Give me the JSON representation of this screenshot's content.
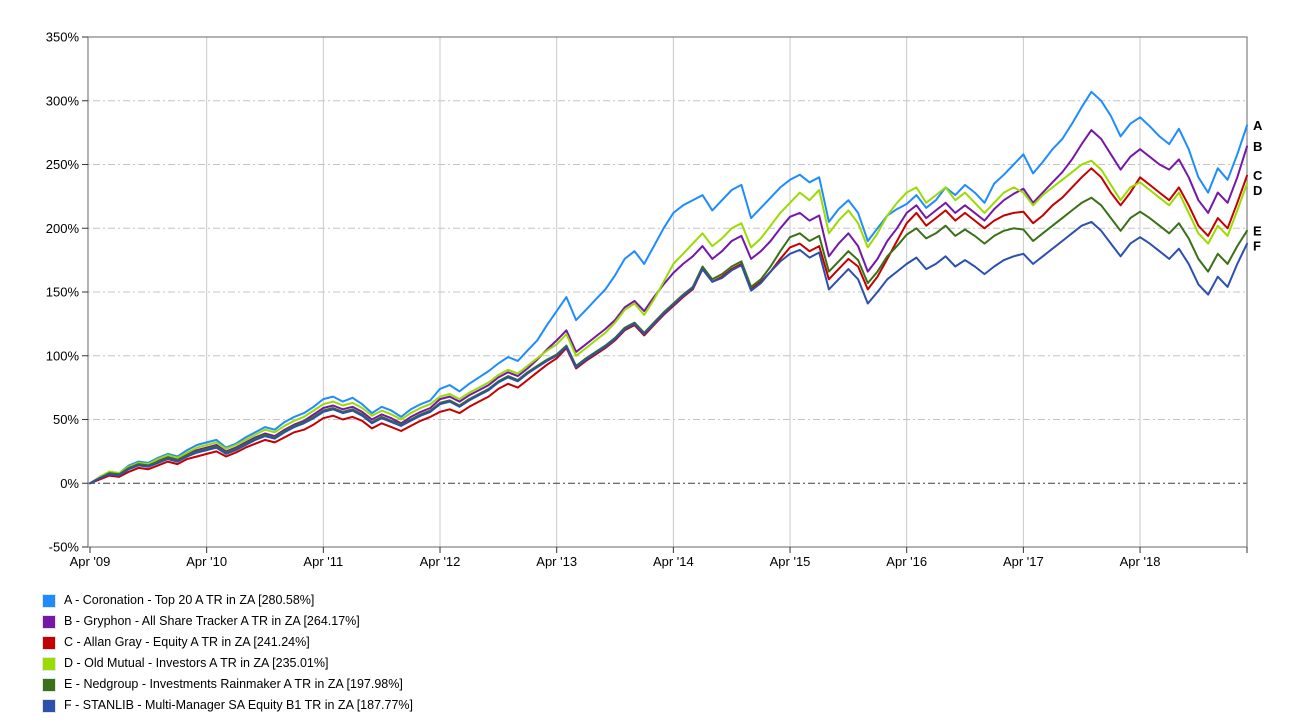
{
  "chart_data": {
    "type": "line",
    "title": "",
    "x_axis": {
      "tick_labels": [
        "Apr '09",
        "Apr '10",
        "Apr '11",
        "Apr '12",
        "Apr '13",
        "Apr '14",
        "Apr '15",
        "Apr '16",
        "Apr '17",
        "Apr '18"
      ],
      "tick_months": [
        0,
        12,
        24,
        36,
        48,
        60,
        72,
        84,
        96,
        108
      ],
      "unit": "months since Apr 2009"
    },
    "y_axis": {
      "tick_labels": [
        "350%",
        "300%",
        "250%",
        "200%",
        "150%",
        "100%",
        "50%",
        "0%",
        "-50%"
      ],
      "tick_values": [
        350,
        300,
        250,
        200,
        150,
        100,
        50,
        0,
        -50
      ],
      "min": -50,
      "max": 350,
      "unit": "%"
    },
    "grid": {
      "vertical_color": "#c9c9c9",
      "horizontal_color": "#c4c4c4",
      "zero_line_color": "#3c3c3c",
      "border_color": "#808080",
      "tick_color": "#333333",
      "label_color": "#000000"
    },
    "series": [
      {
        "id": "A",
        "name": "Coronation - Top 20 A TR in ZA",
        "final_value": 280.58,
        "color": "#1E8CFF",
        "legend_label": "A - Coronation - Top 20 A TR in ZA [280.58%]",
        "values": [
          0,
          5,
          9,
          8,
          14,
          17,
          16,
          20,
          23,
          21,
          26,
          30,
          32,
          34,
          28,
          31,
          36,
          40,
          44,
          42,
          48,
          52,
          55,
          60,
          66,
          68,
          64,
          67,
          62,
          55,
          60,
          57,
          52,
          58,
          62,
          65,
          74,
          77,
          72,
          78,
          83,
          88,
          94,
          99,
          96,
          104,
          112,
          124,
          135,
          146,
          128,
          136,
          144,
          152,
          163,
          176,
          182,
          172,
          186,
          200,
          212,
          218,
          222,
          226,
          214,
          222,
          230,
          234,
          208,
          216,
          224,
          232,
          238,
          242,
          236,
          240,
          205,
          215,
          222,
          212,
          190,
          200,
          210,
          215,
          219,
          226,
          216,
          222,
          232,
          226,
          234,
          228,
          220,
          235,
          242,
          250,
          258,
          243,
          252,
          262,
          270,
          282,
          295,
          307,
          300,
          288,
          272,
          282,
          287,
          280,
          272,
          266,
          278,
          262,
          240,
          228,
          247,
          238,
          258,
          280.58
        ]
      },
      {
        "id": "B",
        "name": "Gryphon - All Share Tracker A TR in ZA",
        "final_value": 264.17,
        "color": "#7517A8",
        "legend_label": "B - Gryphon - All Share Tracker A TR in ZA [264.17%]",
        "values": [
          0,
          4,
          8,
          7,
          12,
          15,
          14,
          18,
          21,
          19,
          23,
          26,
          28,
          30,
          25,
          28,
          32,
          36,
          39,
          37,
          42,
          46,
          49,
          54,
          59,
          61,
          58,
          60,
          56,
          50,
          54,
          51,
          47,
          52,
          56,
          59,
          66,
          68,
          64,
          69,
          73,
          77,
          83,
          87,
          84,
          90,
          97,
          105,
          112,
          120,
          103,
          109,
          115,
          121,
          128,
          138,
          143,
          135,
          146,
          156,
          165,
          172,
          178,
          186,
          176,
          182,
          190,
          194,
          176,
          182,
          190,
          200,
          209,
          212,
          206,
          210,
          178,
          188,
          196,
          186,
          166,
          176,
          190,
          200,
          212,
          218,
          208,
          214,
          220,
          212,
          218,
          212,
          206,
          215,
          222,
          227,
          231,
          220,
          228,
          236,
          244,
          254,
          266,
          277,
          270,
          258,
          246,
          256,
          262,
          256,
          250,
          246,
          254,
          240,
          222,
          212,
          228,
          220,
          240,
          264.17
        ]
      },
      {
        "id": "C",
        "name": "Allan Gray - Equity A TR in ZA",
        "final_value": 241.24,
        "color": "#C40000",
        "legend_label": "C - Allan Gray - Equity A TR in ZA [241.24%]",
        "values": [
          0,
          3,
          6,
          5,
          9,
          12,
          11,
          14,
          17,
          15,
          19,
          21,
          23,
          25,
          21,
          24,
          28,
          31,
          34,
          32,
          36,
          40,
          42,
          46,
          51,
          53,
          50,
          52,
          49,
          43,
          47,
          44,
          41,
          45,
          49,
          52,
          56,
          58,
          55,
          60,
          64,
          68,
          74,
          78,
          75,
          81,
          87,
          93,
          98,
          106,
          90,
          96,
          101,
          106,
          112,
          120,
          124,
          116,
          124,
          132,
          139,
          146,
          152,
          168,
          158,
          162,
          168,
          172,
          152,
          158,
          166,
          176,
          185,
          188,
          182,
          186,
          160,
          168,
          176,
          170,
          152,
          162,
          176,
          190,
          204,
          212,
          202,
          208,
          214,
          206,
          212,
          206,
          200,
          206,
          210,
          212,
          213,
          204,
          210,
          218,
          224,
          232,
          240,
          247,
          240,
          228,
          218,
          228,
          240,
          234,
          228,
          222,
          232,
          218,
          202,
          194,
          208,
          200,
          220,
          241.24
        ]
      },
      {
        "id": "D",
        "name": "Old Mutual - Investors A TR in ZA",
        "final_value": 235.01,
        "color": "#9BDC00",
        "legend_label": "D - Old Mutual - Investors A TR in ZA [235.01%]",
        "values": [
          0,
          5,
          9,
          8,
          13,
          16,
          15,
          19,
          22,
          20,
          24,
          28,
          30,
          32,
          27,
          30,
          34,
          38,
          42,
          40,
          45,
          49,
          52,
          57,
          62,
          64,
          61,
          63,
          59,
          53,
          57,
          54,
          50,
          55,
          59,
          62,
          68,
          70,
          66,
          71,
          75,
          79,
          85,
          89,
          86,
          92,
          98,
          104,
          109,
          117,
          100,
          106,
          112,
          118,
          126,
          136,
          141,
          132,
          144,
          158,
          172,
          180,
          188,
          196,
          186,
          192,
          200,
          204,
          185,
          192,
          202,
          212,
          220,
          228,
          222,
          230,
          196,
          206,
          214,
          204,
          185,
          196,
          210,
          220,
          228,
          232,
          220,
          226,
          232,
          222,
          228,
          220,
          212,
          220,
          228,
          232,
          228,
          218,
          226,
          232,
          238,
          244,
          250,
          253,
          246,
          234,
          222,
          232,
          236,
          230,
          224,
          218,
          228,
          212,
          196,
          188,
          202,
          194,
          214,
          235.01
        ]
      },
      {
        "id": "E",
        "name": "Nedgroup - Investments Rainmaker A TR in ZA",
        "final_value": 197.98,
        "color": "#3A7017",
        "legend_label": "E - Nedgroup - Investments Rainmaker A TR in ZA [197.98%]",
        "values": [
          0,
          4,
          8,
          7,
          12,
          15,
          14,
          17,
          20,
          18,
          22,
          25,
          27,
          29,
          24,
          27,
          31,
          35,
          38,
          36,
          41,
          45,
          48,
          52,
          57,
          59,
          56,
          58,
          54,
          48,
          52,
          49,
          46,
          50,
          54,
          57,
          63,
          65,
          61,
          66,
          70,
          74,
          80,
          84,
          81,
          87,
          92,
          97,
          101,
          108,
          92,
          98,
          103,
          108,
          114,
          122,
          126,
          118,
          126,
          134,
          141,
          148,
          154,
          170,
          160,
          164,
          170,
          174,
          154,
          160,
          170,
          182,
          193,
          196,
          190,
          194,
          166,
          174,
          182,
          175,
          157,
          166,
          178,
          186,
          195,
          200,
          192,
          196,
          202,
          194,
          199,
          194,
          188,
          194,
          198,
          200,
          199,
          190,
          196,
          202,
          208,
          214,
          220,
          224,
          218,
          208,
          198,
          208,
          213,
          208,
          202,
          196,
          204,
          192,
          176,
          166,
          180,
          172,
          186,
          197.98
        ]
      },
      {
        "id": "F",
        "name": "STANLIB - Multi-Manager SA Equity B1 TR in ZA",
        "final_value": 187.77,
        "color": "#2D50AE",
        "legend_label": "F - STANLIB - Multi-Manager SA Equity B1 TR in ZA [187.77%]",
        "values": [
          0,
          4,
          7,
          6,
          11,
          14,
          13,
          16,
          19,
          17,
          21,
          24,
          26,
          28,
          23,
          26,
          30,
          34,
          37,
          35,
          40,
          44,
          47,
          51,
          56,
          58,
          55,
          57,
          53,
          47,
          51,
          48,
          45,
          49,
          53,
          56,
          62,
          64,
          60,
          65,
          69,
          73,
          79,
          83,
          80,
          86,
          91,
          96,
          100,
          107,
          91,
          97,
          102,
          107,
          113,
          121,
          125,
          117,
          125,
          133,
          140,
          147,
          153,
          168,
          158,
          161,
          167,
          171,
          151,
          157,
          166,
          174,
          180,
          183,
          177,
          181,
          152,
          160,
          168,
          160,
          141,
          150,
          160,
          166,
          172,
          177,
          168,
          172,
          178,
          170,
          175,
          170,
          164,
          170,
          175,
          178,
          180,
          172,
          178,
          184,
          190,
          196,
          202,
          205,
          198,
          188,
          178,
          188,
          193,
          188,
          182,
          176,
          184,
          172,
          156,
          148,
          162,
          154,
          172,
          187.77
        ]
      }
    ]
  }
}
